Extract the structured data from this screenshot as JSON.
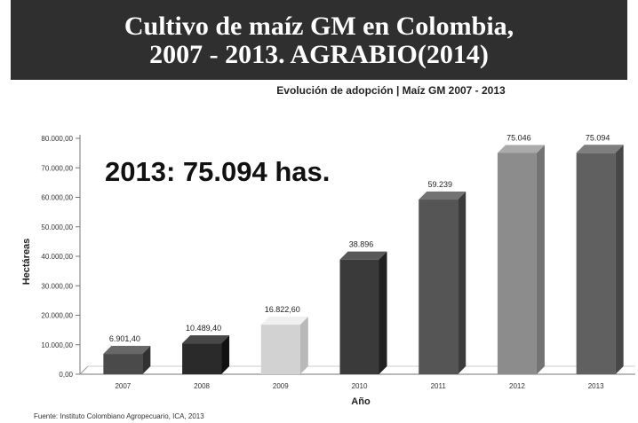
{
  "banner": {
    "line1": "Cultivo de maíz GM en Colombia,",
    "line2": "2007 - 2013. AGRABIO(2014)"
  },
  "source": "Fuente: Instituto Colombiano Agropecuario, ICA, 2013",
  "chart_data": {
    "type": "bar",
    "title": "Evolución de adopción | Maíz GM 2007 - 2013",
    "annotation": "2013: 75.094 has.",
    "xlabel": "Año",
    "ylabel": "Hectáreas",
    "categories": [
      "2007",
      "2008",
      "2009",
      "2010",
      "2011",
      "2012",
      "2013"
    ],
    "values": [
      6901.4,
      10489.4,
      16822.6,
      38896,
      59239,
      75046,
      75094
    ],
    "value_labels": [
      "6.901,40",
      "10.489,40",
      "16.822,60",
      "38.896",
      "59.239",
      "75.046",
      "75.094"
    ],
    "yticks": [
      0,
      10000,
      20000,
      30000,
      40000,
      50000,
      60000,
      70000,
      80000
    ],
    "ytick_labels": [
      "0,00",
      "10.000,00",
      "20.000,00",
      "30.000,00",
      "40.000,00",
      "50.000,00",
      "60.000,00",
      "70.000,00",
      "80.000,00"
    ],
    "ylim": [
      0,
      80000
    ],
    "grid": false,
    "bar_colors": [
      "#4a4a4a",
      "#2a2a2a",
      "#d2d2d2",
      "#3a3a3a",
      "#555555",
      "#8c8c8c",
      "#606060"
    ]
  }
}
